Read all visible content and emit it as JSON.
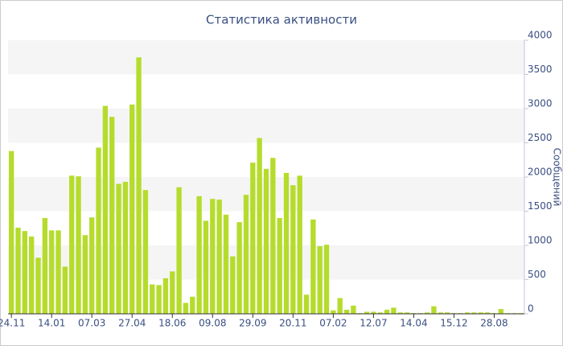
{
  "chart_data": {
    "type": "bar",
    "title": "Статистика активности",
    "y_label": "Сообщений",
    "color": "#b5dc2c",
    "grid": true,
    "y_axis_side": "right",
    "categories": [
      "24.11",
      null,
      null,
      null,
      null,
      null,
      "14.01",
      null,
      null,
      null,
      null,
      null,
      "07.03",
      null,
      null,
      null,
      null,
      null,
      "27.04",
      null,
      null,
      null,
      null,
      null,
      "18.06",
      null,
      null,
      null,
      null,
      null,
      "09.08",
      null,
      null,
      null,
      null,
      null,
      "29.09",
      null,
      null,
      null,
      null,
      null,
      "20.11",
      null,
      null,
      null,
      null,
      null,
      "07.02",
      null,
      null,
      null,
      null,
      null,
      "12.07",
      null,
      null,
      null,
      null,
      null,
      "14.04",
      null,
      null,
      null,
      null,
      null,
      "15.12",
      null,
      null,
      null,
      null,
      null,
      "28.08",
      null,
      null,
      null,
      null
    ],
    "values": [
      2380,
      1260,
      1210,
      1130,
      820,
      1400,
      1220,
      1220,
      690,
      2020,
      2010,
      1150,
      1410,
      2430,
      3040,
      2880,
      1900,
      1930,
      3060,
      3750,
      1810,
      430,
      420,
      520,
      620,
      1850,
      160,
      250,
      1720,
      1360,
      1680,
      1670,
      1450,
      840,
      1340,
      1740,
      2210,
      2570,
      2120,
      2280,
      1400,
      2060,
      1880,
      2020,
      280,
      1380,
      990,
      1010,
      50,
      230,
      60,
      120,
      10,
      30,
      30,
      20,
      60,
      90,
      20,
      20,
      10,
      10,
      20,
      110,
      20,
      20,
      10,
      10,
      20,
      20,
      20,
      20,
      10,
      70,
      10,
      10,
      10
    ],
    "ylim": [
      0,
      4000
    ],
    "yticks": [
      0,
      500,
      1000,
      1500,
      2000,
      2500,
      3000,
      3500,
      4000
    ]
  }
}
